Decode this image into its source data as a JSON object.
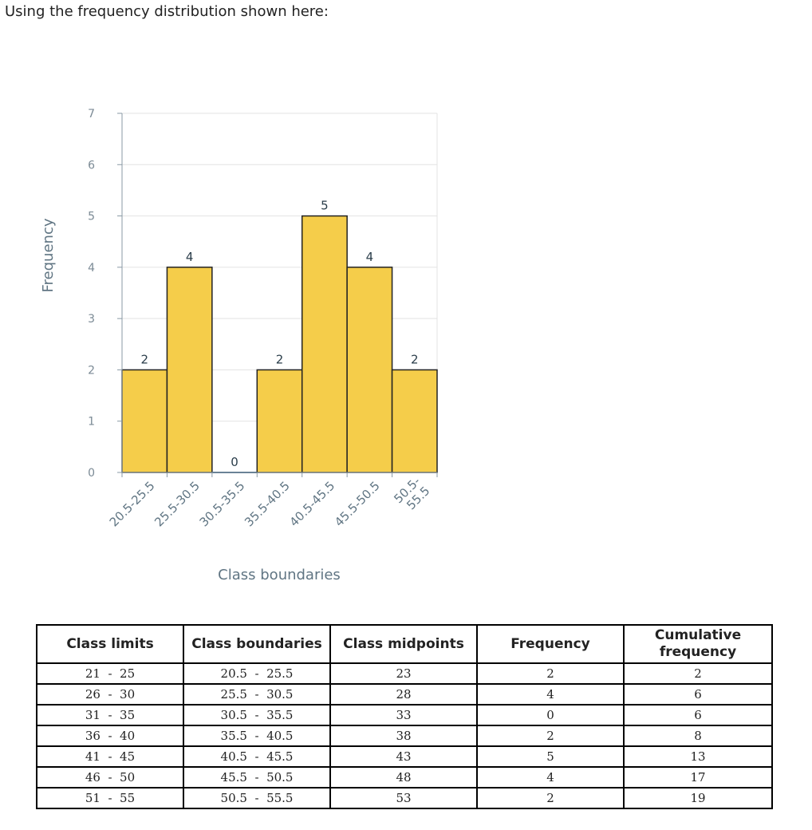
{
  "prompt": "Using the frequency distribution shown here:",
  "chart_data": {
    "type": "bar",
    "categories": [
      "20.5-25.5",
      "25.5-30.5",
      "30.5-35.5",
      "35.5-40.5",
      "40.5-45.5",
      "45.5-50.5",
      "50.5-55.5"
    ],
    "category_label_lines": [
      [
        "20.5-25.5"
      ],
      [
        "25.5-30.5"
      ],
      [
        "30.5-35.5"
      ],
      [
        "35.5-40.5"
      ],
      [
        "40.5-45.5"
      ],
      [
        "45.5-50.5"
      ],
      [
        "50.5-",
        "55.5"
      ]
    ],
    "values": [
      2,
      4,
      0,
      2,
      5,
      4,
      2
    ],
    "xlabel": "Class boundaries",
    "ylabel": "Frequency",
    "ylim": [
      0,
      7
    ],
    "yticks": [
      0,
      1,
      2,
      3,
      4,
      5,
      6,
      7
    ],
    "grid": true,
    "data_labels": true,
    "colors": {
      "bar": "#f5cd4a",
      "bar_edge": "#222222",
      "grid": "#e3e3e3",
      "axis": "#8a9aa5"
    }
  },
  "table": {
    "headers": [
      "Class limits",
      "Class boundaries",
      "Class midpoints",
      "Frequency",
      "Cumulative frequency"
    ],
    "rows": [
      [
        "21  -  25",
        "20.5  -  25.5",
        "23",
        "2",
        "2"
      ],
      [
        "26  -  30",
        "25.5  -  30.5",
        "28",
        "4",
        "6"
      ],
      [
        "31  -  35",
        "30.5  -  35.5",
        "33",
        "0",
        "6"
      ],
      [
        "36  -  40",
        "35.5  -  40.5",
        "38",
        "2",
        "8"
      ],
      [
        "41  -  45",
        "40.5  -  45.5",
        "43",
        "5",
        "13"
      ],
      [
        "46  -  50",
        "45.5  -  50.5",
        "48",
        "4",
        "17"
      ],
      [
        "51  -  55",
        "50.5  -  55.5",
        "53",
        "2",
        "19"
      ]
    ]
  }
}
